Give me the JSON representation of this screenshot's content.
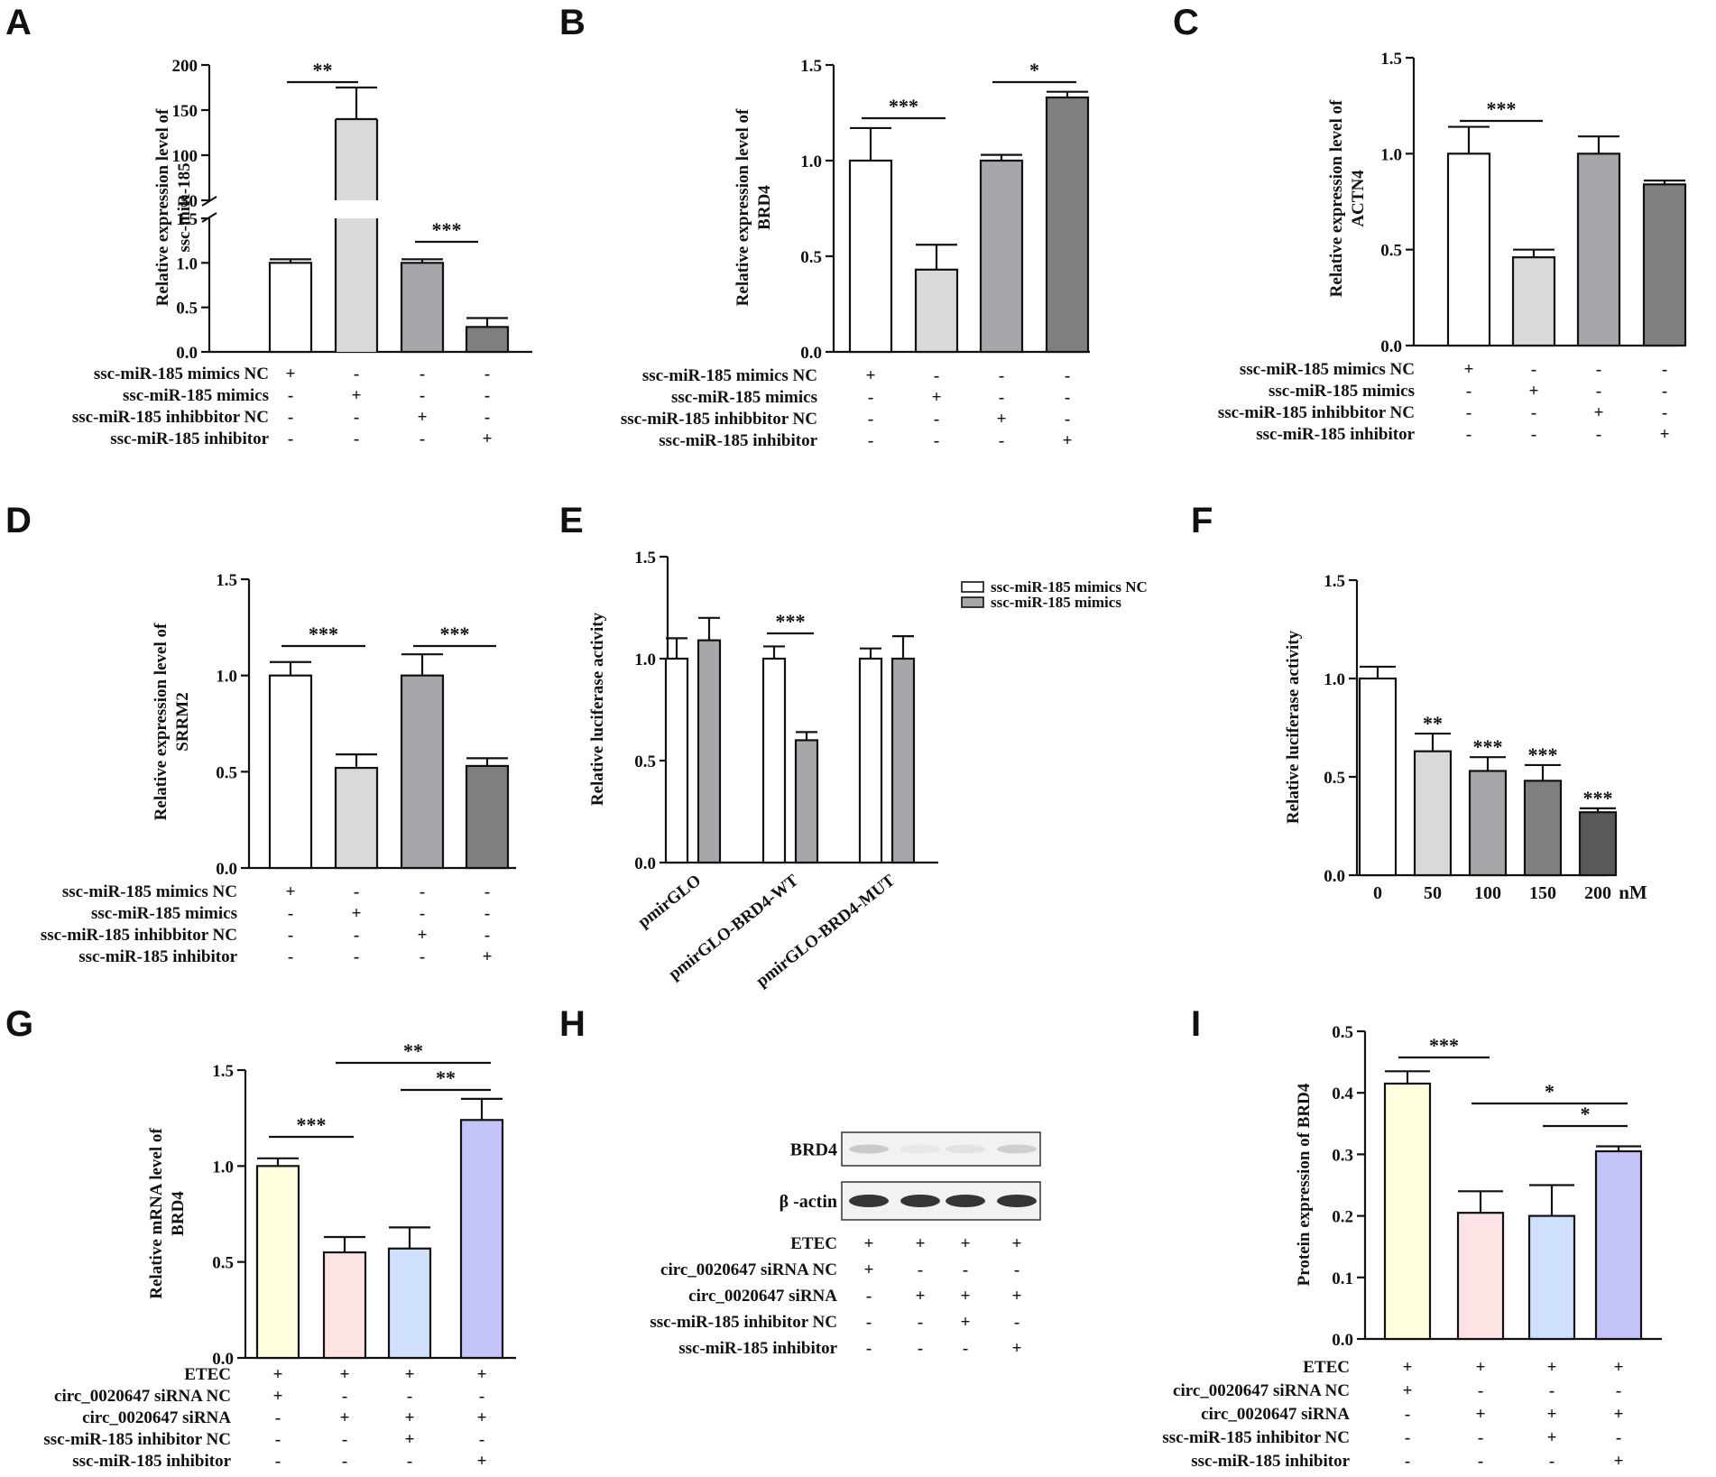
{
  "chart_data": [
    {
      "panel": "A",
      "type": "bar",
      "ylabel": [
        "Relative expression level of",
        "ssc-miR-185"
      ],
      "axis_break": {
        "lower_ticks": [
          "0.0",
          "0.5",
          "1.0",
          "1.5"
        ],
        "upper_ticks": [
          "50",
          "100",
          "150",
          "200"
        ],
        "lower_range": [
          0,
          1.5
        ],
        "upper_range": [
          50,
          200
        ]
      },
      "values": [
        1.0,
        140,
        1.0,
        0.28
      ],
      "errors": [
        0.04,
        35,
        0.04,
        0.1
      ],
      "colors": [
        "#ffffff",
        "#d9d9d9",
        "#a6a6ab",
        "#7f7f7f"
      ],
      "treatments": [
        {
          "label": "ssc-miR-185 mimics NC",
          "signs": [
            "+",
            "-",
            "-",
            "-"
          ]
        },
        {
          "label": "ssc-miR-185 mimics",
          "signs": [
            "-",
            "+",
            "-",
            "-"
          ]
        },
        {
          "label": "ssc-miR-185 inhibbitor NC",
          "signs": [
            "-",
            "-",
            "+",
            "-"
          ]
        },
        {
          "label": "ssc-miR-185 inhibitor",
          "signs": [
            "-",
            "-",
            "-",
            "+"
          ]
        }
      ],
      "significance": [
        {
          "from": 0,
          "to": 1,
          "label": "**"
        },
        {
          "from": 2,
          "to": 3,
          "label": "***"
        }
      ]
    },
    {
      "panel": "B",
      "type": "bar",
      "ylabel": [
        "Relative expression level of",
        "BRD4"
      ],
      "ylim": [
        0,
        1.5
      ],
      "yticks": [
        "0.0",
        "0.5",
        "1.0",
        "1.5"
      ],
      "values": [
        1.0,
        0.43,
        1.0,
        1.33
      ],
      "errors": [
        0.17,
        0.13,
        0.03,
        0.03
      ],
      "colors": [
        "#ffffff",
        "#d9d9d9",
        "#a6a6ab",
        "#7f7f7f"
      ],
      "treatments": [
        {
          "label": "ssc-miR-185 mimics NC",
          "signs": [
            "+",
            "-",
            "-",
            "-"
          ]
        },
        {
          "label": "ssc-miR-185 mimics",
          "signs": [
            "-",
            "+",
            "-",
            "-"
          ]
        },
        {
          "label": "ssc-miR-185 inhibbitor NC",
          "signs": [
            "-",
            "-",
            "+",
            "-"
          ]
        },
        {
          "label": "ssc-miR-185 inhibitor",
          "signs": [
            "-",
            "-",
            "-",
            "+"
          ]
        }
      ],
      "significance": [
        {
          "from": 0,
          "to": 1,
          "label": "***"
        },
        {
          "from": 2,
          "to": 3,
          "label": "*"
        }
      ]
    },
    {
      "panel": "C",
      "type": "bar",
      "ylabel": [
        "Relative expression level of",
        "ACTN4"
      ],
      "ylim": [
        0,
        1.5
      ],
      "yticks": [
        "0.0",
        "0.5",
        "1.0",
        "1.5"
      ],
      "values": [
        1.0,
        0.46,
        1.0,
        0.84
      ],
      "errors": [
        0.14,
        0.04,
        0.09,
        0.02
      ],
      "colors": [
        "#ffffff",
        "#d9d9d9",
        "#a6a6ab",
        "#7f7f7f"
      ],
      "treatments": [
        {
          "label": "ssc-miR-185 mimics NC",
          "signs": [
            "+",
            "-",
            "-",
            "-"
          ]
        },
        {
          "label": "ssc-miR-185 mimics",
          "signs": [
            "-",
            "+",
            "-",
            "-"
          ]
        },
        {
          "label": "ssc-miR-185 inhibbitor NC",
          "signs": [
            "-",
            "-",
            "+",
            "-"
          ]
        },
        {
          "label": "ssc-miR-185 inhibitor",
          "signs": [
            "-",
            "-",
            "-",
            "+"
          ]
        }
      ],
      "significance": [
        {
          "from": 0,
          "to": 1,
          "label": "***"
        }
      ]
    },
    {
      "panel": "D",
      "type": "bar",
      "ylabel": [
        "Relative expression level of",
        "SRRM2"
      ],
      "ylim": [
        0,
        1.5
      ],
      "yticks": [
        "0.0",
        "0.5",
        "1.0",
        "1.5"
      ],
      "values": [
        1.0,
        0.52,
        1.0,
        0.53
      ],
      "errors": [
        0.07,
        0.07,
        0.11,
        0.04
      ],
      "colors": [
        "#ffffff",
        "#d9d9d9",
        "#a6a6ab",
        "#7f7f7f"
      ],
      "treatments": [
        {
          "label": "ssc-miR-185 mimics NC",
          "signs": [
            "+",
            "-",
            "-",
            "-"
          ]
        },
        {
          "label": "ssc-miR-185 mimics",
          "signs": [
            "-",
            "+",
            "-",
            "-"
          ]
        },
        {
          "label": "ssc-miR-185 inhibbitor NC",
          "signs": [
            "-",
            "-",
            "+",
            "-"
          ]
        },
        {
          "label": "ssc-miR-185 inhibitor",
          "signs": [
            "-",
            "-",
            "-",
            "+"
          ]
        }
      ],
      "significance": [
        {
          "from": 0,
          "to": 1,
          "label": "***"
        },
        {
          "from": 2,
          "to": 3,
          "label": "***"
        }
      ]
    },
    {
      "panel": "E",
      "type": "bar",
      "ylabel": [
        "Relative luciferase activity"
      ],
      "ylim": [
        0,
        1.5
      ],
      "yticks": [
        "0.0",
        "0.5",
        "1.0",
        "1.5"
      ],
      "categories": [
        "pmirGLO",
        "pmirGLO-BRD4-WT",
        "pmirGLO-BRD4-MUT"
      ],
      "series": [
        {
          "name": "ssc-miR-185 mimics NC",
          "color": "#ffffff",
          "values": [
            1.0,
            1.0,
            1.0
          ],
          "errors": [
            0.1,
            0.06,
            0.05
          ]
        },
        {
          "name": "ssc-miR-185 mimics",
          "color": "#a6a6ab",
          "values": [
            1.09,
            0.6,
            1.0
          ],
          "errors": [
            0.11,
            0.04,
            0.11
          ]
        }
      ],
      "significance": [
        {
          "category": 1,
          "label": "***"
        }
      ]
    },
    {
      "panel": "F",
      "type": "bar",
      "ylabel": [
        "Relative luciferase activity"
      ],
      "ylim": [
        0,
        1.5
      ],
      "yticks": [
        "0.0",
        "0.5",
        "1.0",
        "1.5"
      ],
      "categories": [
        "0",
        "50",
        "100",
        "150",
        "200"
      ],
      "xunit": "nM",
      "values": [
        1.0,
        0.63,
        0.53,
        0.48,
        0.32
      ],
      "errors": [
        0.06,
        0.09,
        0.07,
        0.08,
        0.02
      ],
      "colors": [
        "#ffffff",
        "#d9d9d9",
        "#a6a6ab",
        "#7f7f7f",
        "#595959"
      ],
      "stars": [
        "",
        "**",
        "***",
        "***",
        "***"
      ]
    },
    {
      "panel": "G",
      "type": "bar",
      "ylabel": [
        "Relative mRNA level of",
        "BRD4"
      ],
      "ylim": [
        0,
        1.5
      ],
      "yticks": [
        "0.0",
        "0.5",
        "1.0",
        "1.5"
      ],
      "values": [
        1.0,
        0.55,
        0.57,
        1.24
      ],
      "errors": [
        0.04,
        0.08,
        0.11,
        0.11
      ],
      "colors": [
        "#ffffe0",
        "#fde3e3",
        "#cfe0fb",
        "#c4c4fb"
      ],
      "treatments": [
        {
          "label": "ETEC",
          "signs": [
            "+",
            "+",
            "+",
            "+"
          ]
        },
        {
          "label": "circ_0020647 siRNA NC",
          "signs": [
            "+",
            "-",
            "-",
            "-"
          ]
        },
        {
          "label": "circ_0020647 siRNA",
          "signs": [
            "-",
            "+",
            "+",
            "+"
          ]
        },
        {
          "label": "ssc-miR-185 inhibitor NC",
          "signs": [
            "-",
            "-",
            "+",
            "-"
          ]
        },
        {
          "label": "ssc-miR-185 inhibitor",
          "signs": [
            "-",
            "-",
            "-",
            "+"
          ]
        }
      ],
      "significance": [
        {
          "from": 0,
          "to": 1,
          "label": "***"
        },
        {
          "from": 2,
          "to": 3,
          "label": "**"
        },
        {
          "from": 1,
          "to": 3,
          "label": "**"
        }
      ]
    },
    {
      "panel": "H",
      "type": "table",
      "blots": [
        {
          "label": "BRD4"
        },
        {
          "label": "β -actin"
        }
      ],
      "band_intensity": {
        "BRD4": [
          0.4,
          0.1,
          0.15,
          0.35
        ],
        "β -actin": [
          1.0,
          1.0,
          1.0,
          1.0
        ]
      },
      "treatments": [
        {
          "label": "ETEC",
          "signs": [
            "+",
            "+",
            "+",
            "+"
          ]
        },
        {
          "label": "circ_0020647 siRNA NC",
          "signs": [
            "+",
            "-",
            "-",
            "-"
          ]
        },
        {
          "label": "circ_0020647 siRNA",
          "signs": [
            "-",
            "+",
            "+",
            "+"
          ]
        },
        {
          "label": "ssc-miR-185 inhibitor NC",
          "signs": [
            "-",
            "-",
            "+",
            "-"
          ]
        },
        {
          "label": "ssc-miR-185 inhibitor",
          "signs": [
            "-",
            "-",
            "-",
            "+"
          ]
        }
      ]
    },
    {
      "panel": "I",
      "type": "bar",
      "ylabel": [
        "Protein expression of BRD4"
      ],
      "ylim": [
        0,
        0.5
      ],
      "yticks": [
        "0.0",
        "0.1",
        "0.2",
        "0.3",
        "0.4",
        "0.5"
      ],
      "values": [
        0.415,
        0.205,
        0.2,
        0.305
      ],
      "errors": [
        0.02,
        0.035,
        0.05,
        0.008
      ],
      "colors": [
        "#ffffe0",
        "#fde3e3",
        "#cfe0fb",
        "#c4c4fb"
      ],
      "treatments": [
        {
          "label": "ETEC",
          "signs": [
            "+",
            "+",
            "+",
            "+"
          ]
        },
        {
          "label": "circ_0020647 siRNA NC",
          "signs": [
            "+",
            "-",
            "-",
            "-"
          ]
        },
        {
          "label": "circ_0020647 siRNA",
          "signs": [
            "-",
            "+",
            "+",
            "+"
          ]
        },
        {
          "label": "ssc-miR-185 inhibitor NC",
          "signs": [
            "-",
            "-",
            "+",
            "-"
          ]
        },
        {
          "label": "ssc-miR-185 inhibitor",
          "signs": [
            "-",
            "-",
            "-",
            "+"
          ]
        }
      ],
      "significance": [
        {
          "from": 0,
          "to": 1,
          "label": "***"
        },
        {
          "from": 2,
          "to": 3,
          "label": "*"
        },
        {
          "from": 1,
          "to": 3,
          "label": "*"
        }
      ]
    }
  ]
}
